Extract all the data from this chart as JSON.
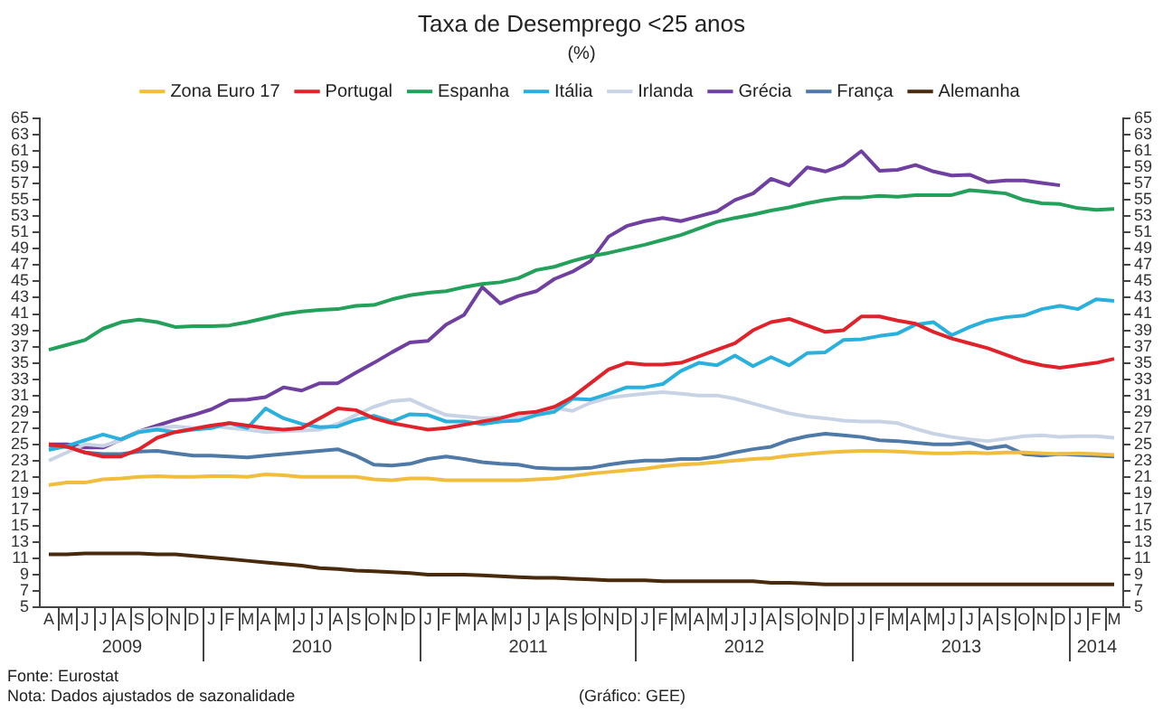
{
  "chart_data": {
    "type": "line",
    "title": "Taxa de Desemprego <25 anos",
    "subtitle": "(%)",
    "categories": [
      "A",
      "M",
      "J",
      "J",
      "A",
      "S",
      "O",
      "N",
      "D",
      "J",
      "F",
      "M",
      "A",
      "M",
      "J",
      "J",
      "A",
      "S",
      "O",
      "N",
      "D",
      "J",
      "F",
      "M",
      "A",
      "M",
      "J",
      "J",
      "A",
      "S",
      "O",
      "N",
      "D",
      "J",
      "F",
      "M",
      "A",
      "M",
      "J",
      "J",
      "A",
      "S",
      "O",
      "N",
      "D",
      "J",
      "F",
      "M",
      "A",
      "M",
      "J",
      "J",
      "A",
      "S",
      "O",
      "N",
      "D",
      "J",
      "F",
      "M"
    ],
    "series": [
      {
        "name": "Zona Euro 17",
        "color": "#f0be3c",
        "values": [
          20.0,
          20.3,
          20.3,
          20.7,
          20.8,
          21.0,
          21.1,
          21.0,
          21.0,
          21.1,
          21.1,
          21.0,
          21.3,
          21.2,
          21.0,
          21.0,
          21.0,
          21.0,
          20.7,
          20.6,
          20.8,
          20.8,
          20.6,
          20.6,
          20.6,
          20.6,
          20.6,
          20.7,
          20.8,
          21.1,
          21.4,
          21.6,
          21.8,
          22.0,
          22.3,
          22.5,
          22.6,
          22.8,
          23.0,
          23.2,
          23.3,
          23.6,
          23.8,
          24.0,
          24.1,
          24.2,
          24.2,
          24.1,
          24.0,
          23.9,
          23.9,
          24.0,
          23.9,
          24.0,
          24.0,
          23.9,
          23.8,
          23.9,
          23.8,
          23.7
        ]
      },
      {
        "name": "Portugal",
        "color": "#e0222a",
        "values": [
          25.0,
          24.7,
          24.0,
          23.5,
          23.5,
          24.4,
          25.8,
          26.5,
          26.9,
          27.3,
          27.6,
          27.3,
          27.0,
          26.8,
          27.0,
          28.2,
          29.4,
          29.2,
          28.2,
          27.6,
          27.2,
          26.8,
          27.0,
          27.4,
          27.8,
          28.2,
          28.8,
          29.0,
          29.6,
          30.8,
          32.5,
          34.2,
          35.0,
          34.8,
          34.8,
          35.0,
          35.8,
          36.6,
          37.4,
          39.0,
          40.0,
          40.4,
          39.6,
          38.8,
          39.0,
          40.7,
          40.7,
          40.2,
          39.8,
          38.8,
          38.0,
          37.4,
          36.8,
          36.0,
          35.2,
          34.7,
          34.4,
          34.7,
          35.0,
          35.5
        ]
      },
      {
        "name": "Espanha",
        "color": "#23a05a",
        "values": [
          36.6,
          37.2,
          37.8,
          39.2,
          40.0,
          40.3,
          40.0,
          39.4,
          39.5,
          39.5,
          39.6,
          40.0,
          40.5,
          41.0,
          41.3,
          41.5,
          41.6,
          42.0,
          42.1,
          42.8,
          43.3,
          43.6,
          43.8,
          44.3,
          44.7,
          44.9,
          45.4,
          46.4,
          46.8,
          47.5,
          48.1,
          48.5,
          49.0,
          49.5,
          50.1,
          50.7,
          51.5,
          52.3,
          52.8,
          53.2,
          53.7,
          54.1,
          54.6,
          55.0,
          55.3,
          55.3,
          55.5,
          55.4,
          55.6,
          55.6,
          55.6,
          56.2,
          56.0,
          55.8,
          55.0,
          54.6,
          54.5,
          54.0,
          53.8,
          53.9
        ]
      },
      {
        "name": "Itália",
        "color": "#2ab0dc",
        "values": [
          24.3,
          24.8,
          25.5,
          26.2,
          25.6,
          26.5,
          26.8,
          26.5,
          26.8,
          27.0,
          27.6,
          27.0,
          29.4,
          28.2,
          27.5,
          27.1,
          27.2,
          28.0,
          28.5,
          27.8,
          28.7,
          28.6,
          27.8,
          27.8,
          27.5,
          27.8,
          27.9,
          28.6,
          29.0,
          30.6,
          30.5,
          31.2,
          32.0,
          32.0,
          32.4,
          34.0,
          35.0,
          34.7,
          35.9,
          34.6,
          35.7,
          34.7,
          36.2,
          36.3,
          37.8,
          37.9,
          38.3,
          38.6,
          39.7,
          40.0,
          38.4,
          39.4,
          40.2,
          40.6,
          40.8,
          41.6,
          42.0,
          41.6,
          42.8,
          42.6
        ]
      },
      {
        "name": "Irlanda",
        "color": "#c8d4e6",
        "values": [
          23.0,
          24.0,
          25.0,
          24.8,
          25.5,
          26.6,
          27.0,
          27.2,
          27.0,
          27.3,
          27.0,
          26.8,
          26.5,
          26.6,
          26.7,
          26.8,
          27.5,
          28.6,
          29.6,
          30.3,
          30.5,
          29.5,
          28.6,
          28.4,
          28.2,
          28.3,
          28.3,
          28.6,
          29.5,
          29.1,
          30.1,
          30.7,
          31.0,
          31.2,
          31.4,
          31.2,
          31.0,
          31.0,
          30.6,
          30.0,
          29.4,
          28.8,
          28.4,
          28.2,
          27.9,
          27.8,
          27.8,
          27.6,
          26.9,
          26.3,
          25.9,
          25.6,
          25.4,
          25.7,
          26.0,
          26.1,
          25.9,
          26.0,
          26.0,
          25.8
        ]
      },
      {
        "name": "Grécia",
        "color": "#7040a0",
        "values": [
          25.0,
          25.0,
          24.6,
          24.6,
          25.6,
          26.6,
          27.3,
          28.0,
          28.6,
          29.3,
          30.4,
          30.5,
          30.8,
          32.0,
          31.6,
          32.5,
          32.5,
          33.8,
          35.0,
          36.3,
          37.5,
          37.7,
          39.7,
          40.9,
          44.3,
          42.3,
          43.2,
          43.8,
          45.3,
          46.2,
          47.5,
          50.5,
          51.8,
          52.4,
          52.8,
          52.4,
          53.0,
          53.6,
          55.0,
          55.8,
          57.6,
          56.8,
          59.0,
          58.5,
          59.3,
          61.0,
          58.6,
          58.7,
          59.3,
          58.5,
          58.0,
          58.1,
          57.2,
          57.4,
          57.4,
          57.1,
          56.8,
          null,
          null,
          null
        ]
      },
      {
        "name": "França",
        "color": "#4f7aa8",
        "values": [
          24.8,
          24.7,
          24.0,
          23.8,
          23.8,
          24.1,
          24.2,
          23.9,
          23.6,
          23.6,
          23.5,
          23.4,
          23.6,
          23.8,
          24.0,
          24.2,
          24.4,
          23.6,
          22.5,
          22.4,
          22.6,
          23.2,
          23.5,
          23.2,
          22.8,
          22.6,
          22.5,
          22.1,
          22.0,
          22.0,
          22.1,
          22.5,
          22.8,
          23.0,
          23.0,
          23.2,
          23.2,
          23.5,
          24.0,
          24.4,
          24.7,
          25.5,
          26.0,
          26.3,
          26.1,
          25.9,
          25.5,
          25.4,
          25.2,
          25.0,
          25.0,
          25.2,
          24.5,
          24.8,
          23.8,
          23.6,
          23.8,
          23.7,
          23.6,
          23.5
        ]
      },
      {
        "name": "Alemanha",
        "color": "#4a2a0c",
        "values": [
          11.5,
          11.5,
          11.6,
          11.6,
          11.6,
          11.6,
          11.5,
          11.5,
          11.3,
          11.1,
          10.9,
          10.7,
          10.5,
          10.3,
          10.1,
          9.8,
          9.7,
          9.5,
          9.4,
          9.3,
          9.2,
          9.0,
          9.0,
          9.0,
          8.9,
          8.8,
          8.7,
          8.6,
          8.6,
          8.5,
          8.4,
          8.3,
          8.3,
          8.3,
          8.2,
          8.2,
          8.2,
          8.2,
          8.2,
          8.2,
          8.0,
          8.0,
          7.9,
          7.8,
          7.8,
          7.8,
          7.8,
          7.8,
          7.8,
          7.8,
          7.8,
          7.8,
          7.8,
          7.8,
          7.8,
          7.8,
          7.8,
          7.8,
          7.8,
          7.8
        ]
      }
    ],
    "ylim": [
      5,
      65
    ],
    "yticks": [
      5,
      7,
      9,
      11,
      13,
      15,
      17,
      19,
      21,
      23,
      25,
      27,
      29,
      31,
      33,
      35,
      37,
      39,
      41,
      43,
      45,
      47,
      49,
      51,
      53,
      55,
      57,
      59,
      61,
      63,
      65
    ],
    "y2lim": [
      5,
      65
    ],
    "y2ticks": [
      5,
      7,
      9,
      11,
      13,
      15,
      17,
      19,
      21,
      23,
      25,
      27,
      29,
      31,
      33,
      35,
      37,
      39,
      41,
      43,
      45,
      47,
      49,
      51,
      53,
      55,
      57,
      59,
      61,
      63,
      65
    ],
    "grid": false,
    "legend": "top",
    "marker": "none",
    "line_style": "solid",
    "annotations": [
      "2009",
      "2010",
      "2011",
      "2012",
      "2013",
      "2014",
      "Fonte: Eurostat",
      "Nota: Dados ajustados de sazonalidade",
      "(Gráfico: GEE)"
    ]
  }
}
